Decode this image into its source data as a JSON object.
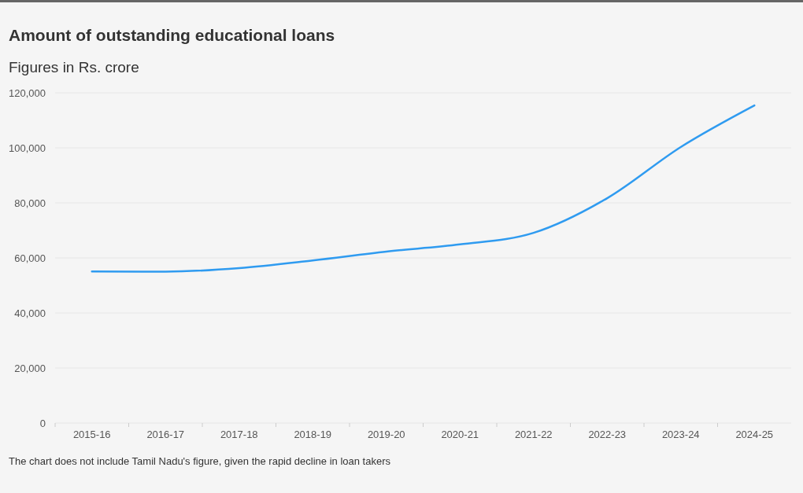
{
  "chart_data": {
    "type": "line",
    "title": "Amount of outstanding educational loans",
    "subtitle": "Figures in Rs. crore",
    "categories": [
      "2015-16",
      "2016-17",
      "2017-18",
      "2018-19",
      "2019-20",
      "2020-21",
      "2021-22",
      "2022-23",
      "2023-24",
      "2024-25"
    ],
    "series": [
      {
        "color": "#2f9bf0",
        "values": [
          55100,
          55000,
          56300,
          59100,
          62300,
          64900,
          69100,
          81700,
          100300,
          115400
        ]
      }
    ],
    "ylim": [
      0,
      120000
    ],
    "yticks": [
      {
        "value": 0,
        "label": "0"
      },
      {
        "value": 20000,
        "label": "20,000"
      },
      {
        "value": 40000,
        "label": "40,000"
      },
      {
        "value": 60000,
        "label": "60,000"
      },
      {
        "value": 80000,
        "label": "80,000"
      },
      {
        "value": 100000,
        "label": "100,000"
      },
      {
        "value": 120000,
        "label": "120,000"
      }
    ],
    "grid": "y",
    "marker": "none",
    "line_style": "solid",
    "annotations": [
      "The chart does not include Tamil Nadu's figure, given the rapid decline in loan takers"
    ]
  }
}
